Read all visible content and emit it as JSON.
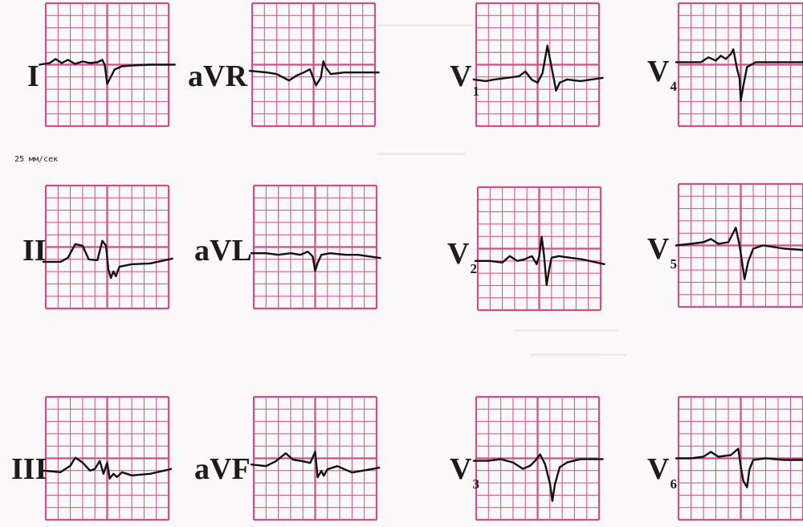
{
  "speed_note": "25 мм/сек",
  "colors": {
    "grid": "#cf4f86",
    "trace": "#111111",
    "background": "#fbf8f9"
  },
  "leads": [
    {
      "id": "I",
      "main": "I",
      "sub": ""
    },
    {
      "id": "II",
      "main": "II",
      "sub": ""
    },
    {
      "id": "III",
      "main": "III",
      "sub": ""
    },
    {
      "id": "aVR",
      "main": "aVR",
      "sub": ""
    },
    {
      "id": "aVL",
      "main": "aVL",
      "sub": ""
    },
    {
      "id": "aVF",
      "main": "aVF",
      "sub": ""
    },
    {
      "id": "V1",
      "main": "V",
      "sub": "1"
    },
    {
      "id": "V2",
      "main": "V",
      "sub": "2"
    },
    {
      "id": "V3",
      "main": "V",
      "sub": "3"
    },
    {
      "id": "V4",
      "main": "V",
      "sub": "4"
    },
    {
      "id": "V5",
      "main": "V",
      "sub": "5"
    },
    {
      "id": "V6",
      "main": "V",
      "sub": "6"
    }
  ]
}
